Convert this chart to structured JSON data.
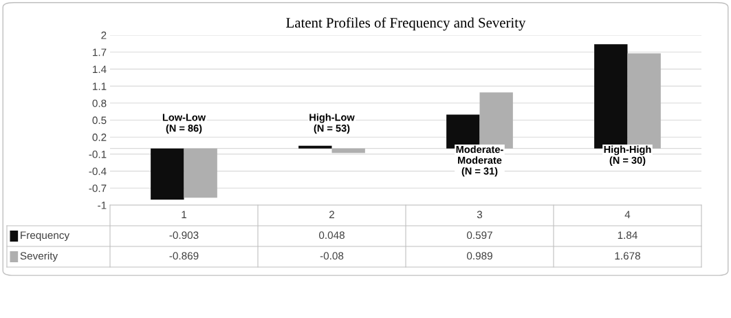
{
  "chart_data": {
    "type": "bar",
    "title": "Latent Profiles of Frequency and Severity",
    "categories": [
      "1",
      "2",
      "3",
      "4"
    ],
    "series": [
      {
        "name": "Frequency",
        "color": "#0d0d0d",
        "values": [
          -0.903,
          0.048,
          0.597,
          1.84
        ]
      },
      {
        "name": "Severity",
        "color": "#afafaf",
        "values": [
          -0.869,
          -0.08,
          0.989,
          1.678
        ]
      }
    ],
    "ylim": [
      -1,
      2
    ],
    "yticks": [
      -1,
      -0.7,
      -0.4,
      -0.1,
      0.2,
      0.5,
      0.8,
      1.1,
      1.4,
      1.7,
      2
    ],
    "grid": "y",
    "data_labels": true,
    "legend": "bottom left",
    "annotations": [
      "Low-Low\n(N = 86)",
      "High-Low\n(N = 53)",
      "Moderate-\nModerate\n(N = 31)",
      "High-High\n(N = 30)"
    ]
  }
}
